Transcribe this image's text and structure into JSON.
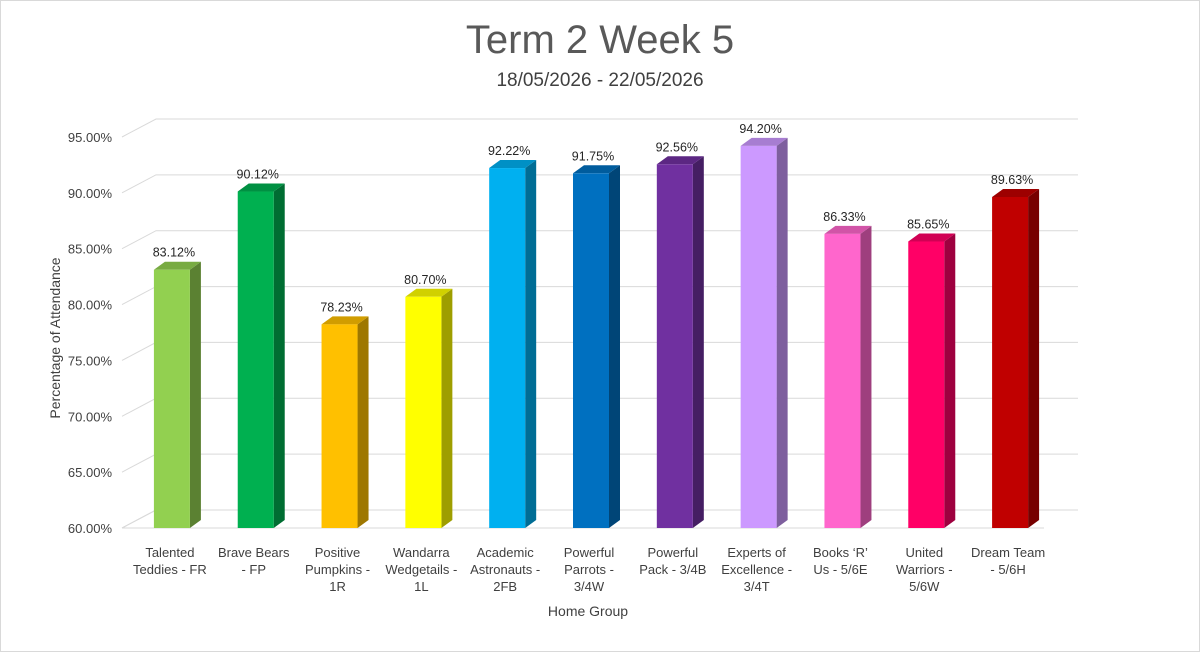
{
  "chart_data": {
    "type": "bar",
    "title": "Term 2 Week 5",
    "subtitle": "18/05/2026 - 22/05/2026",
    "xlabel": "Home Group",
    "ylabel": "Percentage of Attendance",
    "ylim": [
      60,
      95
    ],
    "ytick_step": 5,
    "yticks": [
      "60.00%",
      "65.00%",
      "70.00%",
      "75.00%",
      "80.00%",
      "85.00%",
      "90.00%",
      "95.00%"
    ],
    "grid": true,
    "legend": "none",
    "categories": [
      [
        "Talented",
        "Teddies - FR"
      ],
      [
        "Brave Bears",
        "- FP"
      ],
      [
        "Positive",
        "Pumpkins -",
        "1R"
      ],
      [
        "Wandarra",
        "Wedgetails -",
        "1L"
      ],
      [
        "Academic",
        "Astronauts -",
        "2FB"
      ],
      [
        "Powerful",
        "Parrots -",
        "3/4W"
      ],
      [
        "Powerful",
        "Pack - 3/4B"
      ],
      [
        "Experts of",
        "Excellence -",
        "3/4T"
      ],
      [
        "Books ‘R’",
        "Us - 5/6E"
      ],
      [
        "United",
        "Warriors -",
        "5/6W"
      ],
      [
        "Dream Team",
        "- 5/6H"
      ]
    ],
    "values": [
      83.12,
      90.12,
      78.23,
      80.7,
      92.22,
      91.75,
      92.56,
      94.2,
      86.33,
      85.65,
      89.63
    ],
    "value_labels": [
      "83.12%",
      "90.12%",
      "78.23%",
      "80.70%",
      "92.22%",
      "91.75%",
      "92.56%",
      "94.20%",
      "86.33%",
      "85.65%",
      "89.63%"
    ],
    "colors": [
      "#92D050",
      "#00B050",
      "#FFC000",
      "#FFFF00",
      "#00B0F0",
      "#0070C0",
      "#7030A0",
      "#CC99FF",
      "#FF66CC",
      "#FF0066",
      "#C00000"
    ]
  }
}
